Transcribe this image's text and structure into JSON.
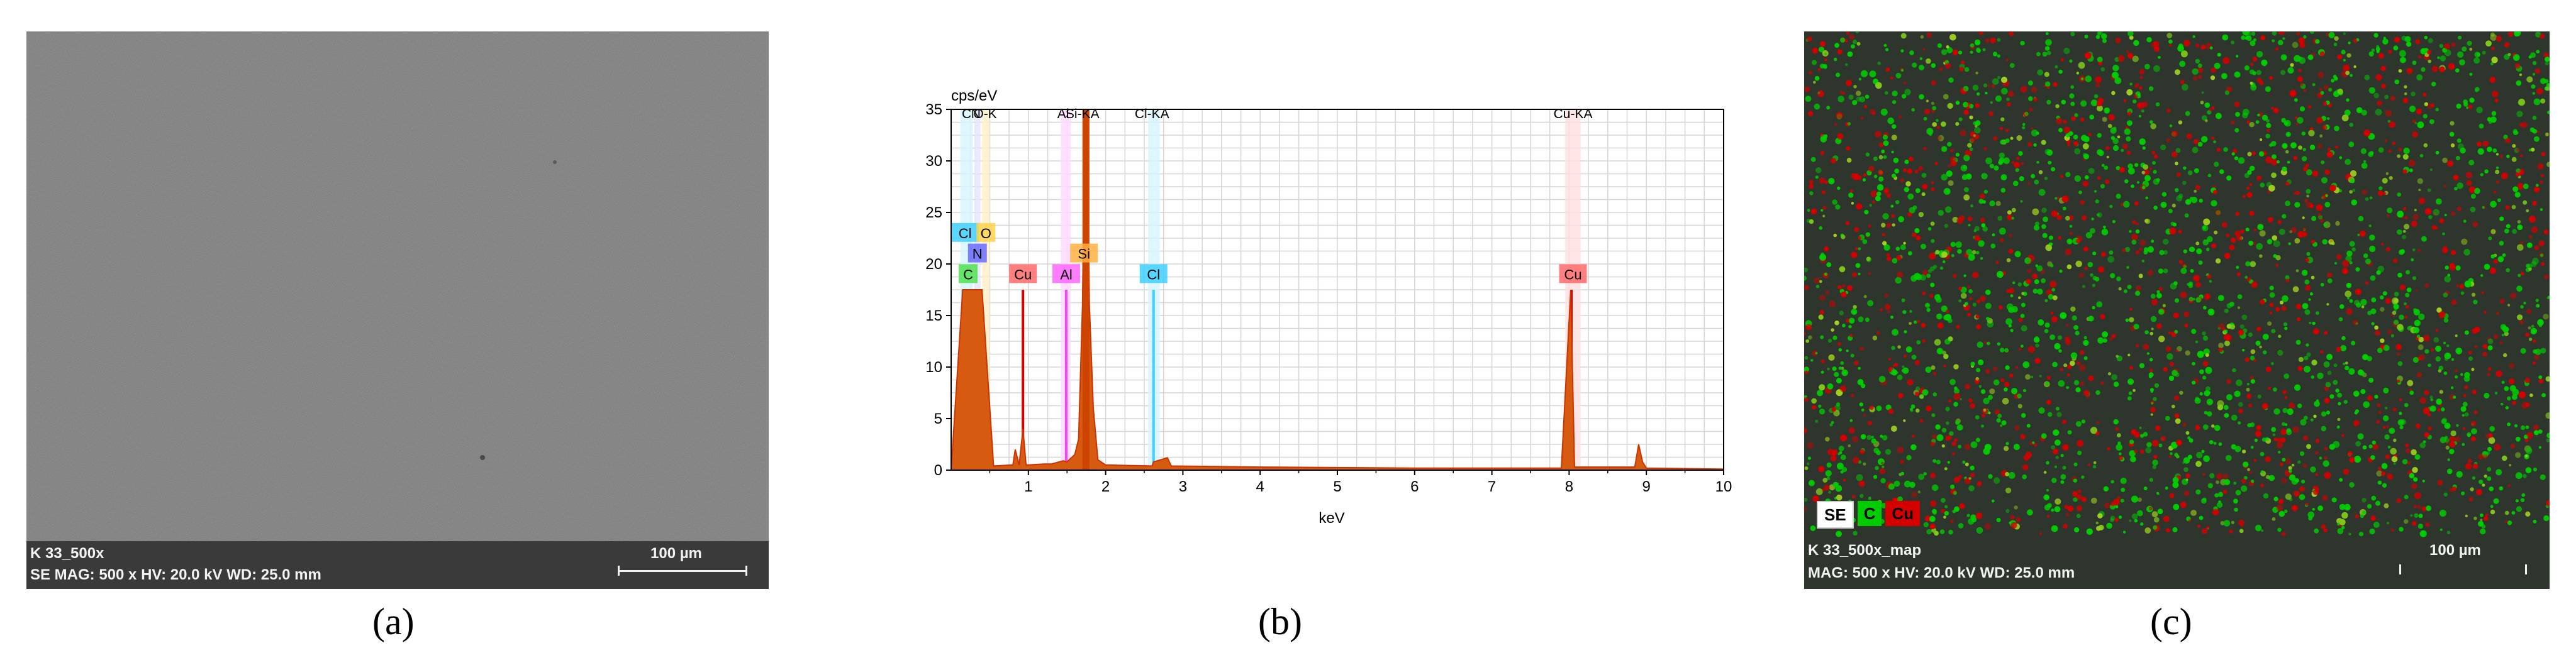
{
  "panel_a": {
    "sample_label": "K 33_500x",
    "info_line": "SE  MAG: 500 x  HV: 20.0 kV  WD: 25.0 mm",
    "scale_bar": "100 µm"
  },
  "panel_c": {
    "sample_label": "K 33_500x_map",
    "info_line": "MAG: 500 x  HV: 20.0 kV  WD: 25.0 mm",
    "scale_bar": "100 µm",
    "legend": [
      "SE",
      "C",
      "Cu"
    ],
    "colors": {
      "C": "#00cc00",
      "Cu": "#d40000"
    }
  },
  "captions": [
    "(a)",
    "(b)",
    "(c)"
  ],
  "chart_data": {
    "type": "line",
    "title": "",
    "ylabel": "cps/eV",
    "xlabel": "keV",
    "xlim": [
      0,
      10
    ],
    "ylim": [
      0,
      35
    ],
    "x_ticks": [
      "1",
      "2",
      "3",
      "4",
      "5",
      "6",
      "7",
      "8",
      "9",
      "10"
    ],
    "y_ticks": [
      "0",
      "5",
      "10",
      "15",
      "20",
      "25",
      "30",
      "35"
    ],
    "top_labels": [
      {
        "text": "C",
        "x": 0.2
      },
      {
        "text": "N",
        "x": 0.32
      },
      {
        "text": "O-K",
        "x": 0.44
      },
      {
        "text": "Al",
        "x": 1.45
      },
      {
        "text": "Si-KA",
        "x": 1.7
      },
      {
        "text": "Cl-KA",
        "x": 2.6
      },
      {
        "text": "Cu-KA",
        "x": 8.05
      }
    ],
    "element_markers": [
      {
        "label": "Cl",
        "x": 0.18,
        "y": 23,
        "color": "#3fd0ff"
      },
      {
        "label": "O",
        "x": 0.45,
        "y": 23,
        "color": "#ffd24a"
      },
      {
        "label": "N",
        "x": 0.34,
        "y": 21,
        "color": "#6a6aff"
      },
      {
        "label": "C",
        "x": 0.22,
        "y": 19,
        "color": "#50e050"
      },
      {
        "label": "Cu",
        "x": 0.93,
        "y": 19,
        "color": "#ff6a6a"
      },
      {
        "label": "Al",
        "x": 1.49,
        "y": 19,
        "color": "#ff66ff"
      },
      {
        "label": "Si",
        "x": 1.72,
        "y": 21,
        "color": "#ffb040"
      },
      {
        "label": "Cl",
        "x": 2.62,
        "y": 19,
        "color": "#3fd0ff"
      },
      {
        "label": "Cu",
        "x": 8.05,
        "y": 19,
        "color": "#ff6a6a"
      }
    ],
    "series": [
      {
        "name": "spectrum",
        "color": "#cc3300",
        "points": [
          [
            0.0,
            0
          ],
          [
            0.15,
            17.5
          ],
          [
            0.2,
            17.5
          ],
          [
            0.3,
            17.5
          ],
          [
            0.4,
            17.5
          ],
          [
            0.55,
            0.4
          ],
          [
            0.8,
            0.5
          ],
          [
            0.83,
            2.0
          ],
          [
            0.88,
            0.5
          ],
          [
            0.93,
            4.0
          ],
          [
            0.97,
            0.5
          ],
          [
            1.0,
            0.5
          ],
          [
            1.2,
            0.6
          ],
          [
            1.3,
            0.6
          ],
          [
            1.45,
            0.9
          ],
          [
            1.5,
            0.8
          ],
          [
            1.6,
            1.5
          ],
          [
            1.65,
            3.0
          ],
          [
            1.7,
            16
          ],
          [
            1.73,
            35
          ],
          [
            1.76,
            34
          ],
          [
            1.79,
            16
          ],
          [
            1.84,
            6
          ],
          [
            1.9,
            1.0
          ],
          [
            2.0,
            0.5
          ],
          [
            2.6,
            0.4
          ],
          [
            2.62,
            0.8
          ],
          [
            2.8,
            1.2
          ],
          [
            2.85,
            0.4
          ],
          [
            4.0,
            0.3
          ],
          [
            6.0,
            0.2
          ],
          [
            7.9,
            0.2
          ],
          [
            8.02,
            17.5
          ],
          [
            8.07,
            0.3
          ],
          [
            8.85,
            0.3
          ],
          [
            8.9,
            2.5
          ],
          [
            8.95,
            0.8
          ],
          [
            9.0,
            0.2
          ],
          [
            10.0,
            0.1
          ]
        ]
      }
    ],
    "element_lines": [
      {
        "x": 0.15,
        "height": 17.5,
        "color": "#3fd0ff"
      },
      {
        "x": 0.22,
        "height": 17.5,
        "color": "#50e050"
      },
      {
        "x": 0.34,
        "height": 17.5,
        "color": "#2020aa"
      },
      {
        "x": 0.93,
        "height": 17.5,
        "color": "#d40000"
      },
      {
        "x": 1.49,
        "height": 17.5,
        "color": "#ff40ff"
      },
      {
        "x": 2.62,
        "height": 17.5,
        "color": "#3fd0ff"
      },
      {
        "x": 8.03,
        "height": 17.5,
        "color": "#d40000"
      }
    ]
  }
}
